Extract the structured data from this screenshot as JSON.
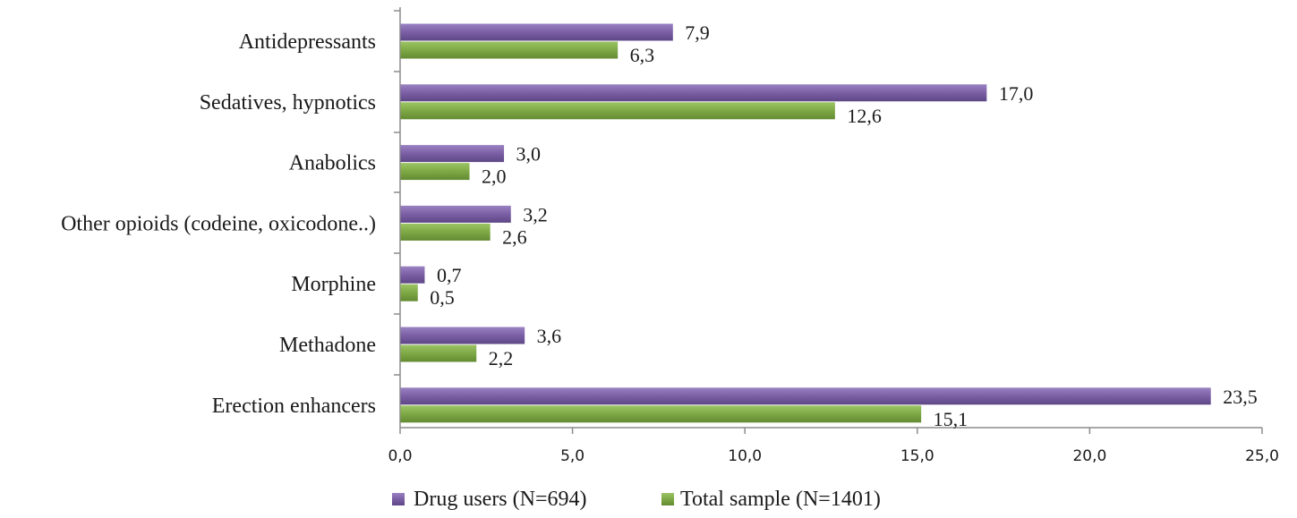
{
  "chart_data": {
    "type": "bar",
    "orientation": "horizontal",
    "categories": [
      "Antidepressants",
      "Sedatives, hypnotics",
      "Anabolics",
      "Other opioids (codeine, oxicodone..)",
      "Morphine",
      "Methadone",
      "Erection enhancers"
    ],
    "series": [
      {
        "name": "Drug users (N=694)",
        "color": "#7b5fa5",
        "values": [
          7.9,
          17.0,
          3.0,
          3.2,
          0.7,
          3.6,
          23.5
        ],
        "value_labels": [
          "7,9",
          "17,0",
          "3,0",
          "3,2",
          "0,7",
          "3,6",
          "23,5"
        ]
      },
      {
        "name": "Total sample (N=1401)",
        "color": "#7ea845",
        "values": [
          6.3,
          12.6,
          2.0,
          2.6,
          0.5,
          2.2,
          15.1
        ],
        "value_labels": [
          "6,3",
          "12,6",
          "2,0",
          "2,6",
          "0,5",
          "2,2",
          "15,1"
        ]
      }
    ],
    "x_ticks": [
      0,
      5,
      10,
      15,
      20,
      25
    ],
    "x_tick_labels": [
      "0,0",
      "5,0",
      "10,0",
      "15,0",
      "20,0",
      "25,0"
    ],
    "xlim": [
      0,
      25
    ],
    "title": "",
    "xlabel": "",
    "ylabel": "",
    "grid": false,
    "legend_position": "bottom"
  }
}
